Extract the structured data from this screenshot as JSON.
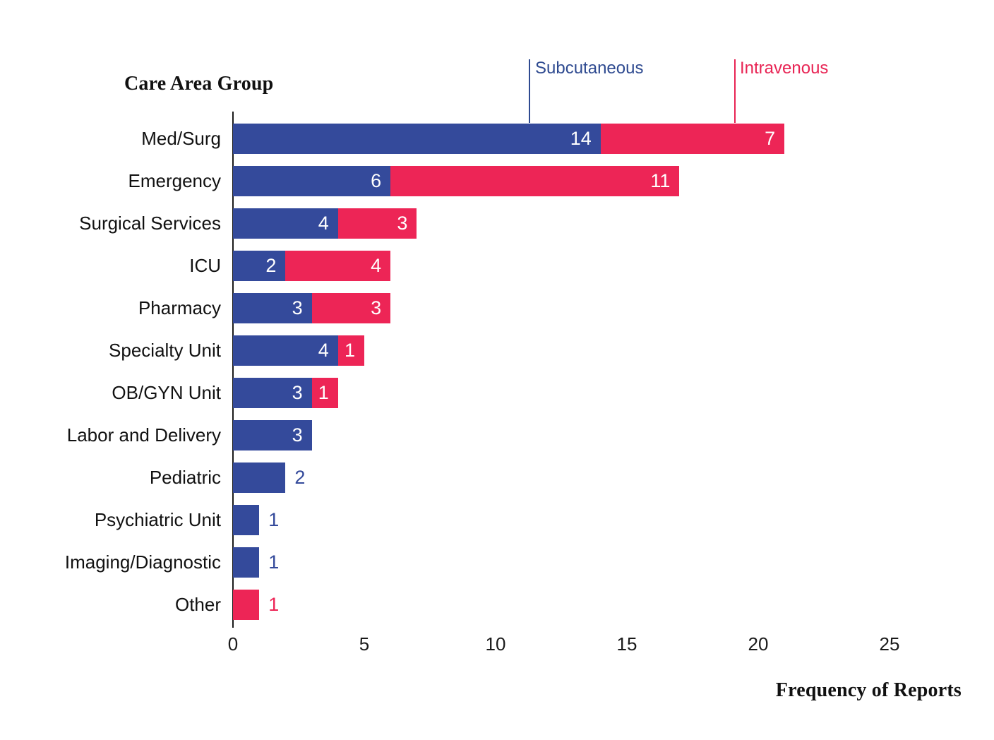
{
  "chart_data": {
    "type": "bar",
    "orientation": "horizontal",
    "stacked": true,
    "title": "Care Area Group",
    "xlabel": "Frequency of Reports",
    "ylabel": "Care Area Group",
    "xlim": [
      0,
      25
    ],
    "x_ticks": [
      0,
      5,
      10,
      15,
      20,
      25
    ],
    "grid": false,
    "legend_position": "top-callouts-with-leader-lines",
    "value_labels": "shown-on-each-segment",
    "categories": [
      "Med/Surg",
      "Emergency",
      "Surgical Services",
      "ICU",
      "Pharmacy",
      "Specialty Unit",
      "OB/GYN Unit",
      "Labor and Delivery",
      "Pediatric",
      "Psychiatric Unit",
      "Imaging/Diagnostic",
      "Other"
    ],
    "series": [
      {
        "name": "Subcutaneous",
        "color": "#344A9B",
        "values": [
          14,
          6,
          4,
          2,
          3,
          4,
          3,
          3,
          2,
          1,
          1,
          0
        ]
      },
      {
        "name": "Intravenous",
        "color": "#ED2556",
        "values": [
          7,
          11,
          3,
          4,
          3,
          1,
          1,
          0,
          0,
          0,
          0,
          1
        ]
      }
    ],
    "totals": [
      21,
      17,
      7,
      6,
      6,
      5,
      4,
      3,
      2,
      1,
      1,
      1
    ]
  },
  "colors": {
    "subcutaneous_bar": "#344A9B",
    "intravenous_bar": "#ED2556",
    "subcutaneous_text": "#2E4A90",
    "intravenous_text": "#E82454",
    "axis_line": "#1A1A1A",
    "text": "#111111",
    "value_label_inside": "#FFFFFF",
    "background": "#FFFFFF"
  }
}
